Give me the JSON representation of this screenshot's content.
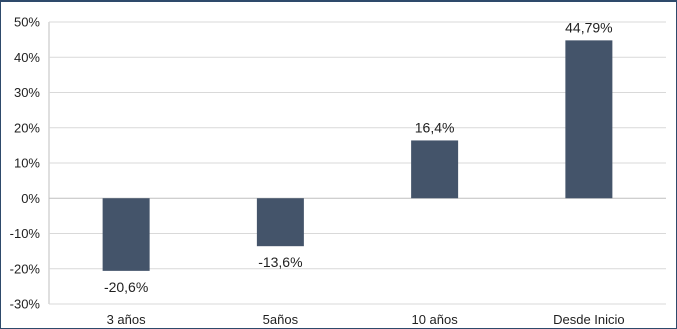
{
  "chart_data": {
    "type": "bar",
    "categories": [
      "3 años",
      "5años",
      "10 años",
      "Desde Inicio"
    ],
    "values": [
      -20.6,
      -13.6,
      16.4,
      44.79
    ],
    "data_labels": [
      "-20,6%",
      "-13,6%",
      "16,4%",
      "44,79%"
    ],
    "title": "",
    "xlabel": "",
    "ylabel": "",
    "ylim": [
      -30,
      50
    ],
    "yticks": [
      50,
      40,
      30,
      20,
      10,
      0,
      -10,
      -20,
      -30
    ],
    "ytick_labels": [
      "50%",
      "40%",
      "30%",
      "20%",
      "10%",
      "0%",
      "-10%",
      "-20%",
      "-30%"
    ],
    "grid": true,
    "legend": "none",
    "bar_color": "#44546a"
  }
}
